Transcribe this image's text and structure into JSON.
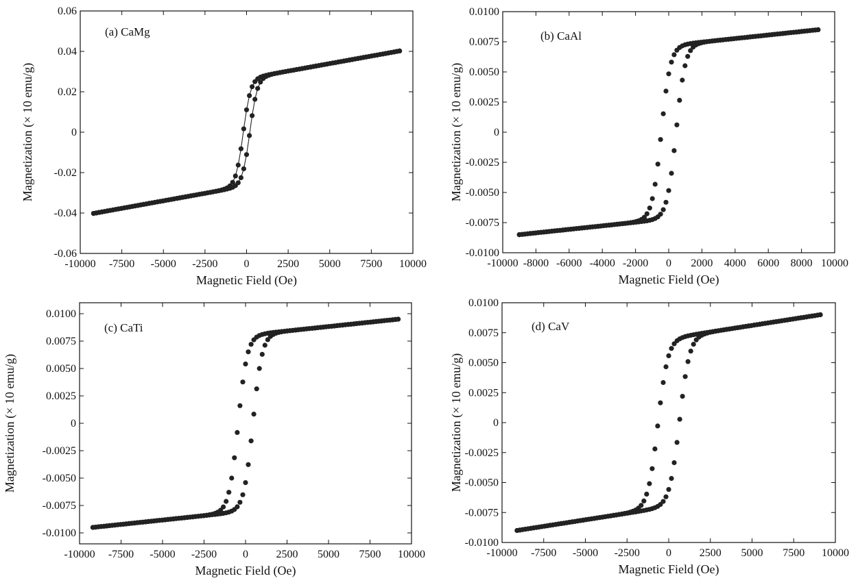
{
  "chart_data": [
    {
      "type": "scatter",
      "panel_label": "(a) CaMg",
      "xlabel": "Magnetic Field (Oe)",
      "ylabel": "Magnetization (× 10 emu/g)",
      "xlim": [
        -10000,
        10000
      ],
      "ylim": [
        -0.06,
        0.06
      ],
      "xticks": [
        -10000,
        -7500,
        -5000,
        -2500,
        0,
        2500,
        5000,
        7500,
        10000
      ],
      "xtick_labels": [
        "-10000",
        "-7500",
        "-5000",
        "-2500",
        "0",
        "2500",
        "5000",
        "7500",
        "10000"
      ],
      "yticks": [
        -0.06,
        -0.04,
        -0.02,
        0,
        0.02,
        0.04,
        0.06
      ],
      "ytick_labels": [
        "-0.06",
        "-0.04",
        "-0.02",
        "0",
        "0.02",
        "0.04",
        "0.06"
      ],
      "line_connected": true,
      "loop": {
        "ms": 0.0402,
        "hmax": 9200,
        "hc": 200,
        "hk": 450,
        "alpha": 0.34,
        "chi": 9e-07
      }
    },
    {
      "type": "scatter",
      "panel_label": "(b) CaAl",
      "xlabel": "Magnetic Field (Oe)",
      "ylabel": "Magnetization (× 10 emu/g)",
      "xlim": [
        -10000,
        10000
      ],
      "ylim": [
        -0.01,
        0.01
      ],
      "xticks": [
        -10000,
        -8000,
        -6000,
        -4000,
        -2000,
        0,
        2000,
        4000,
        6000,
        8000,
        10000
      ],
      "xtick_labels": [
        "-10000",
        "-8000",
        "-6000",
        "-4000",
        "-2000",
        "0",
        "2000",
        "4000",
        "6000",
        "8000",
        "10000"
      ],
      "yticks": [
        -0.01,
        -0.0075,
        -0.005,
        -0.0025,
        0,
        0.0025,
        0.005,
        0.0075,
        0.01
      ],
      "ytick_labels": [
        "-0.0100",
        "-0.0075",
        "-0.0050",
        "-0.0025",
        "0",
        "0.0025",
        "0.0050",
        "0.0075",
        "0.0100"
      ],
      "line_connected": false,
      "loop": {
        "ms": 0.0085,
        "hmax": 9000,
        "hc": 450,
        "hk": 550,
        "alpha": 0.155,
        "chi": 7.98e-07
      }
    },
    {
      "type": "scatter",
      "panel_label": "(c) CaTi",
      "xlabel": "Magnetic Field (Oe)",
      "ylabel": "Magnetization (× 10 emu/g)",
      "xlim": [
        -10000,
        10000
      ],
      "ylim": [
        -0.011,
        0.011
      ],
      "xticks": [
        -10000,
        -7500,
        -5000,
        -2500,
        0,
        2500,
        5000,
        7500,
        10000
      ],
      "xtick_labels": [
        "-10000",
        "-7500",
        "-5000",
        "-2500",
        "0",
        "2500",
        "5000",
        "7500",
        "10000"
      ],
      "yticks": [
        -0.01,
        -0.0075,
        -0.005,
        -0.0025,
        0,
        0.0025,
        0.005,
        0.0075,
        0.01
      ],
      "ytick_labels": [
        "-0.0100",
        "-0.0075",
        "-0.0050",
        "-0.0025",
        "0",
        "0.0025",
        "0.0050",
        "0.0075",
        "0.0100"
      ],
      "line_connected": false,
      "loop": {
        "ms": 0.0095,
        "hmax": 9200,
        "hc": 450,
        "hk": 550,
        "alpha": 0.155,
        "chi": 8.72e-07
      }
    },
    {
      "type": "scatter",
      "panel_label": "(d) CaV",
      "xlabel": "Magnetic Field (Oe)",
      "ylabel": "Magnetization (× 10 emu/g)",
      "xlim": [
        -10000,
        10000
      ],
      "ylim": [
        -0.01,
        0.01
      ],
      "xticks": [
        -10000,
        -7500,
        -5000,
        -2500,
        0,
        2500,
        5000,
        7500,
        10000
      ],
      "xtick_labels": [
        "-10000",
        "-7500",
        "-5000",
        "-2500",
        "0",
        "2500",
        "5000",
        "7500",
        "10000"
      ],
      "yticks": [
        -0.01,
        -0.0075,
        -0.005,
        -0.0025,
        0,
        0.0025,
        0.005,
        0.0075,
        0.01
      ],
      "ytick_labels": [
        "-0.0100",
        "-0.0075",
        "-0.0050",
        "-0.0025",
        "0",
        "0.0025",
        "0.0050",
        "0.0075",
        "0.0100"
      ],
      "line_connected": false,
      "loop": {
        "ms": 0.009,
        "hmax": 9100,
        "hc": 650,
        "hk": 600,
        "alpha": 0.22,
        "chi": 7.47e-07
      }
    }
  ],
  "style": {
    "marker_color": "#222222",
    "axis_color": "#111111",
    "background": "#ffffff"
  }
}
